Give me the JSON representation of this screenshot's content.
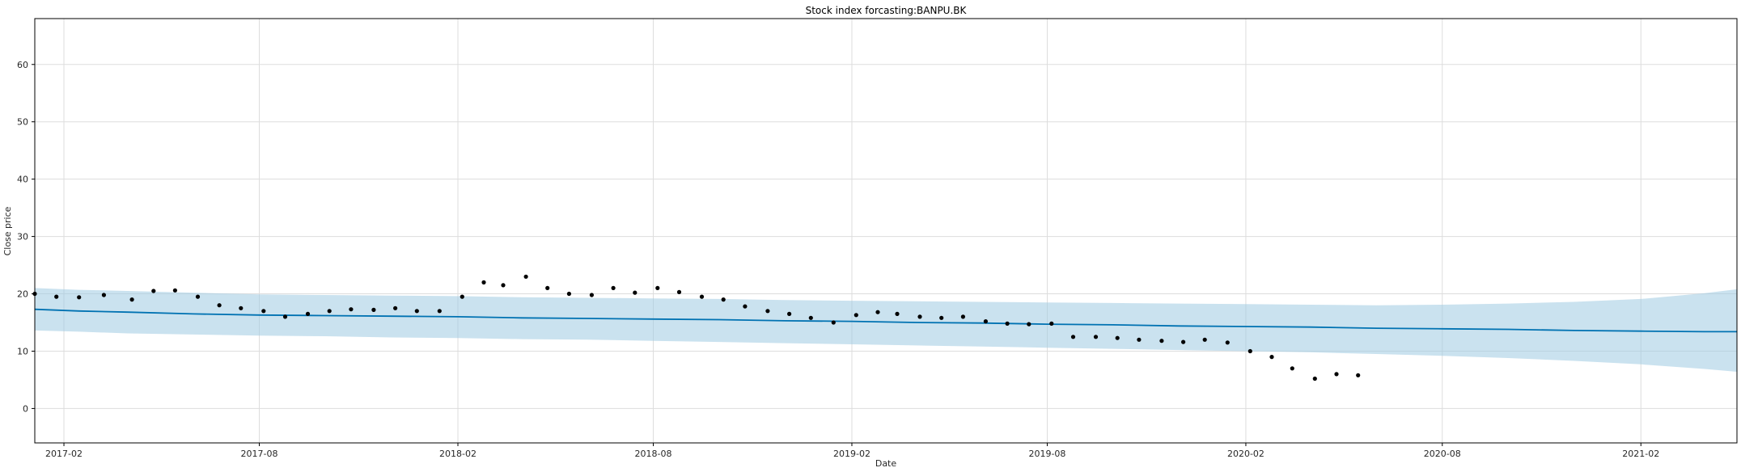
{
  "chart_data": {
    "type": "line",
    "title": "Stock index forcasting:BANPU.BK",
    "xlabel": "Date",
    "ylabel": "Close price",
    "x_range": [
      "2017-01-05",
      "2021-05-01"
    ],
    "ylim": [
      -6,
      68
    ],
    "x_ticks": [
      "2017-02",
      "2017-08",
      "2018-02",
      "2018-08",
      "2019-02",
      "2019-08",
      "2020-02",
      "2020-08",
      "2021-02"
    ],
    "y_ticks": [
      0,
      10,
      20,
      30,
      40,
      50,
      60
    ],
    "grid": true,
    "colors": {
      "forecast": "#0072B2",
      "uncertainty": "#9ECAE1",
      "observed": "#000000",
      "grid": "#DDDDDD",
      "axis": "#000000"
    },
    "series": [
      {
        "name": "",
        "kind": "forecast",
        "x": [
          "2017-01-05",
          "2017-02-15",
          "2017-04-01",
          "2017-06-01",
          "2017-08-01",
          "2017-10-01",
          "2017-12-01",
          "2018-02-01",
          "2018-04-01",
          "2018-06-01",
          "2018-08-01",
          "2018-10-01",
          "2018-12-01",
          "2019-02-01",
          "2019-04-01",
          "2019-06-01",
          "2019-08-01",
          "2019-10-01",
          "2019-12-01",
          "2020-02-01",
          "2020-04-01",
          "2020-06-01",
          "2020-08-01",
          "2020-10-01",
          "2020-12-01",
          "2021-02-01",
          "2021-04-01",
          "2021-05-01"
        ],
        "yhat": [
          17.3,
          17.0,
          16.8,
          16.5,
          16.3,
          16.2,
          16.1,
          16.0,
          15.8,
          15.7,
          15.6,
          15.5,
          15.3,
          15.2,
          15.0,
          14.9,
          14.7,
          14.6,
          14.4,
          14.3,
          14.2,
          14.0,
          13.9,
          13.8,
          13.6,
          13.5,
          13.4,
          13.4
        ],
        "lower": [
          13.6,
          13.4,
          13.1,
          12.9,
          12.7,
          12.6,
          12.4,
          12.3,
          12.1,
          12.0,
          11.8,
          11.6,
          11.4,
          11.2,
          11.0,
          10.8,
          10.6,
          10.4,
          10.2,
          10.0,
          9.8,
          9.5,
          9.2,
          8.8,
          8.3,
          7.7,
          6.9,
          6.4
        ],
        "upper": [
          21.0,
          20.7,
          20.5,
          20.2,
          19.9,
          19.8,
          19.7,
          19.6,
          19.4,
          19.3,
          19.2,
          19.1,
          18.9,
          18.8,
          18.7,
          18.6,
          18.5,
          18.4,
          18.3,
          18.2,
          18.1,
          18.0,
          18.1,
          18.3,
          18.6,
          19.1,
          20.1,
          20.8
        ]
      },
      {
        "name": "",
        "kind": "observed",
        "x": [
          "2017-01-05",
          "2017-01-25",
          "2017-02-15",
          "2017-03-10",
          "2017-04-05",
          "2017-04-25",
          "2017-05-15",
          "2017-06-05",
          "2017-06-25",
          "2017-07-15",
          "2017-08-05",
          "2017-08-25",
          "2017-09-15",
          "2017-10-05",
          "2017-10-25",
          "2017-11-15",
          "2017-12-05",
          "2017-12-25",
          "2018-01-15",
          "2018-02-05",
          "2018-02-25",
          "2018-03-15",
          "2018-04-05",
          "2018-04-25",
          "2018-05-15",
          "2018-06-05",
          "2018-06-25",
          "2018-07-15",
          "2018-08-05",
          "2018-08-25",
          "2018-09-15",
          "2018-10-05",
          "2018-10-25",
          "2018-11-15",
          "2018-12-05",
          "2018-12-25",
          "2019-01-15",
          "2019-02-05",
          "2019-02-25",
          "2019-03-15",
          "2019-04-05",
          "2019-04-25",
          "2019-05-15",
          "2019-06-05",
          "2019-06-25",
          "2019-07-15",
          "2019-08-05",
          "2019-08-25",
          "2019-09-15",
          "2019-10-05",
          "2019-10-25",
          "2019-11-15",
          "2019-12-05",
          "2019-12-25",
          "2020-01-15",
          "2020-02-05",
          "2020-02-25",
          "2020-03-15",
          "2020-04-05",
          "2020-04-25",
          "2020-05-15"
        ],
        "y": [
          20.0,
          19.5,
          19.4,
          19.8,
          19.0,
          20.5,
          20.6,
          19.5,
          18.0,
          17.5,
          17.0,
          16.0,
          16.5,
          17.0,
          17.3,
          17.2,
          17.5,
          17.0,
          17.0,
          19.5,
          22.0,
          21.5,
          23.0,
          21.0,
          20.0,
          19.8,
          21.0,
          20.2,
          21.0,
          20.3,
          19.5,
          19.0,
          17.8,
          17.0,
          16.5,
          15.8,
          15.0,
          16.3,
          16.8,
          16.5,
          16.0,
          15.8,
          16.0,
          15.2,
          14.8,
          14.7,
          14.8,
          12.5,
          12.5,
          12.3,
          12.0,
          11.8,
          11.6,
          12.0,
          11.5,
          10.0,
          9.0,
          7.0,
          5.2,
          6.0,
          5.8
        ]
      }
    ]
  }
}
